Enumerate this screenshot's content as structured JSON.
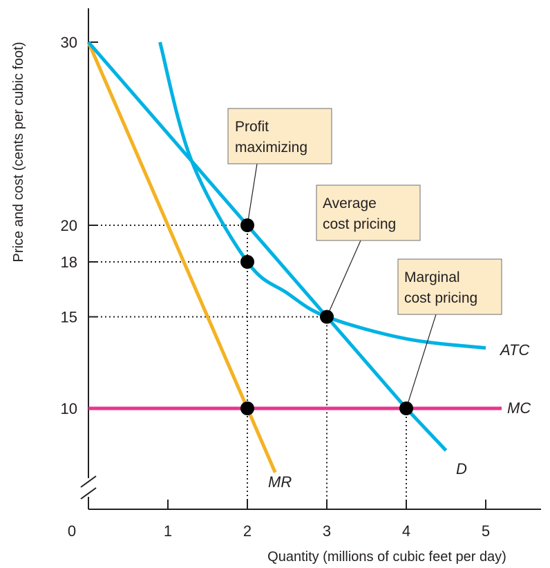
{
  "chart_data": {
    "type": "line",
    "xlabel": "Quantity (millions of cubic feet per day)",
    "ylabel": "Price and cost (cents per cubic foot)",
    "x_ticks": [
      "0",
      "1",
      "2",
      "3",
      "4",
      "5"
    ],
    "y_ticks": [
      "10",
      "15",
      "18",
      "20",
      "30"
    ],
    "xlim": [
      0,
      5.8
    ],
    "ylim": [
      7,
      31
    ],
    "axis_break": "y",
    "grid": false,
    "colors": {
      "demand": "#00b2e3",
      "atc": "#00b2e3",
      "mr": "#f4b223",
      "mc": "#e8358d",
      "dot": "#000000",
      "callout_fill": "#fdebc8"
    },
    "series": [
      {
        "name": "D",
        "x": [
          0,
          2,
          3,
          4,
          4.5
        ],
        "y": [
          30,
          20,
          15,
          10,
          7.7
        ]
      },
      {
        "name": "MR",
        "x": [
          0,
          2,
          2.35
        ],
        "y": [
          30,
          10,
          6.5
        ]
      },
      {
        "name": "ATC",
        "x": [
          0.9,
          1.3,
          2,
          2.5,
          3,
          4,
          5
        ],
        "y": [
          30,
          23.5,
          18,
          16.3,
          15,
          13.8,
          13.3
        ]
      },
      {
        "name": "MC",
        "x": [
          0,
          5.2
        ],
        "y": [
          10,
          10
        ]
      }
    ],
    "points": [
      {
        "x": 2,
        "y": 20
      },
      {
        "x": 2,
        "y": 18
      },
      {
        "x": 3,
        "y": 15
      },
      {
        "x": 2,
        "y": 10
      },
      {
        "x": 4,
        "y": 10
      }
    ],
    "guides": [
      {
        "x": 2,
        "y": 20,
        "to": "y-axis"
      },
      {
        "x": 2,
        "y": 18,
        "to": "y-axis"
      },
      {
        "x": 3,
        "y": 15,
        "to": "y-axis"
      },
      {
        "x": 2,
        "y": 20,
        "to": "x-axis"
      },
      {
        "x": 3,
        "y": 15,
        "to": "x-axis"
      },
      {
        "x": 4,
        "y": 10,
        "to": "x-axis"
      }
    ],
    "annotations": [
      {
        "lines": [
          "Profit",
          "maximizing"
        ],
        "target": {
          "x": 2,
          "y": 20
        }
      },
      {
        "lines": [
          "Average",
          "cost pricing"
        ],
        "target": {
          "x": 3,
          "y": 15
        }
      },
      {
        "lines": [
          "Marginal",
          "cost pricing"
        ],
        "target": {
          "x": 4,
          "y": 10
        }
      }
    ]
  }
}
